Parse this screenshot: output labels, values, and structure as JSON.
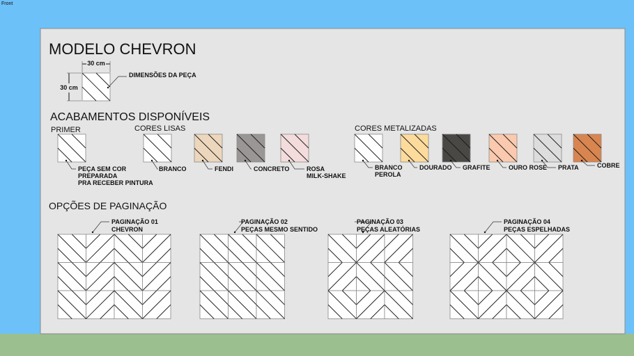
{
  "viewport": {
    "label": "Front",
    "sky_color": "#6dc1f9",
    "ground_color": "#9bbf8f",
    "panel_color": "#e5e5e5"
  },
  "title": "MODELO CHEVRON",
  "dimensions": {
    "width_label": "30 cm",
    "height_label": "30 cm",
    "caption": "DIMENSÕES DA PEÇA"
  },
  "finishes": {
    "heading": "ACABAMENTOS DISPONÍVEIS",
    "groups": [
      {
        "title": "PRIMER",
        "items": [
          {
            "lines": [
              "PEÇA SEM COR",
              "PREPARADA",
              "PRA RECEBER PINTURA"
            ],
            "color": "#ffffff"
          }
        ]
      },
      {
        "title": "CORES LISAS",
        "items": [
          {
            "lines": [
              "BRANCO"
            ],
            "color": "#ffffff"
          },
          {
            "lines": [
              "FENDI"
            ],
            "color": "#ecd7bd"
          },
          {
            "lines": [
              "CONCRETO"
            ],
            "color": "#9a9696"
          },
          {
            "lines": [
              "ROSA",
              "MILK-SHAKE"
            ],
            "color": "#f4dcdc"
          }
        ]
      },
      {
        "title": "CORES METALIZADAS",
        "items": [
          {
            "lines": [
              "BRANCO",
              "PEROLA"
            ],
            "color": "#ffffff"
          },
          {
            "lines": [
              "DOURADO"
            ],
            "color": "#fcdb9c"
          },
          {
            "lines": [
              "GRAFITE"
            ],
            "color": "#4a4845"
          },
          {
            "lines": [
              "OURO ROSE"
            ],
            "color": "#fbc9ae"
          },
          {
            "lines": [
              "PRATA"
            ],
            "color": "#dddddd"
          },
          {
            "lines": [
              "COBRE"
            ],
            "color": "#d9854f"
          }
        ]
      }
    ]
  },
  "pagination": {
    "heading": "OPÇÕES DE PAGINAÇÃO",
    "options": [
      {
        "title": "PAGINAÇÃO 01",
        "subtitle": "CHEVRON"
      },
      {
        "title": "PAGINAÇÃO 02",
        "subtitle": "PEÇAS MESMO SENTIDO"
      },
      {
        "title": "PAGINAÇÃO 03",
        "subtitle": "PEÇAS ALEATÓRIAS"
      },
      {
        "title": "PAGINAÇÃO 04",
        "subtitle": "PEÇAS ESPELHADAS"
      }
    ]
  }
}
